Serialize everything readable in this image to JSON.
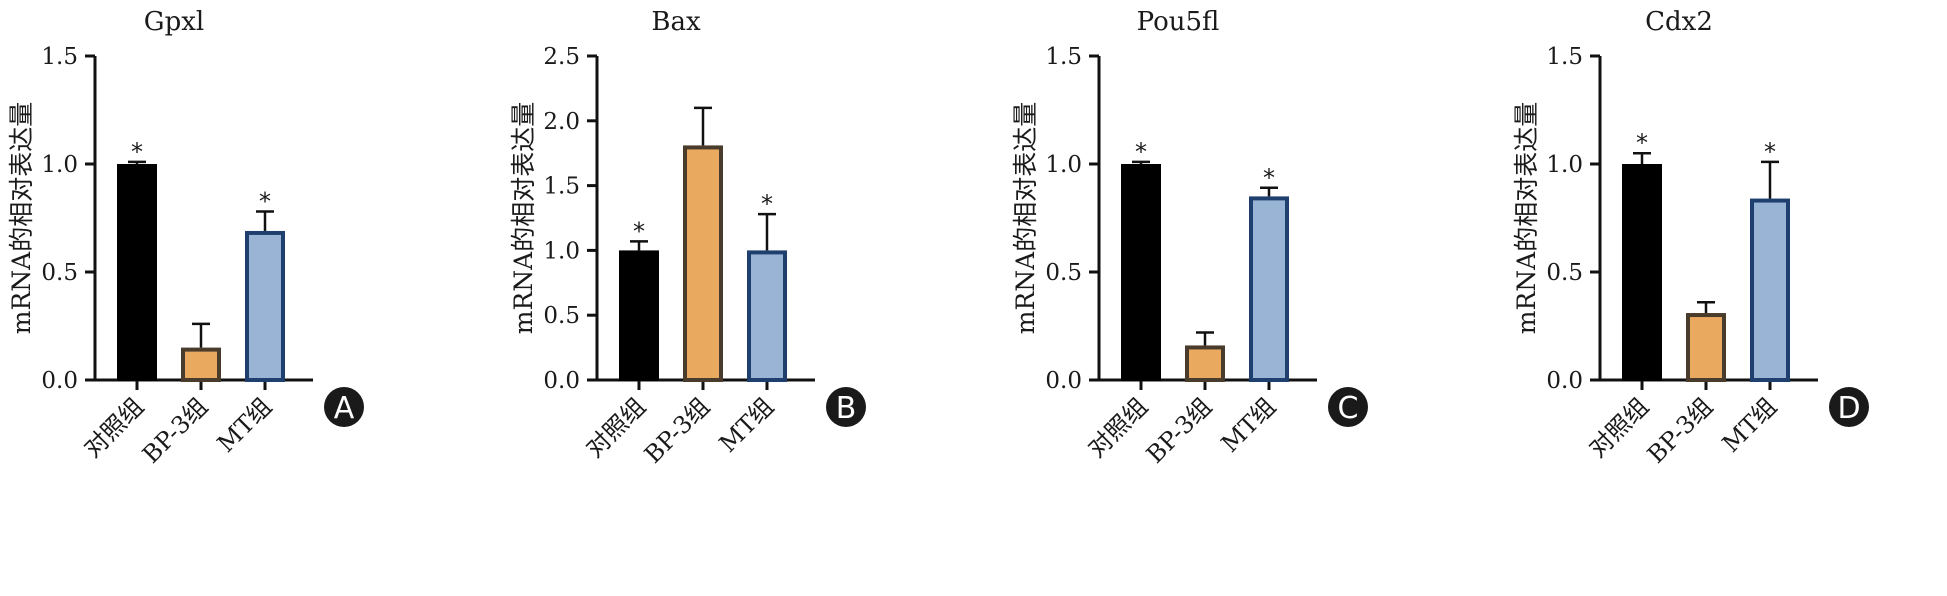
{
  "chart_data": [
    {
      "type": "bar",
      "panel": "A",
      "title": "Gpxl",
      "ylabel": "mRNA的相对表达量",
      "ylim": [
        0,
        1.5
      ],
      "yticks": [
        "0.0",
        "0.5",
        "1.0",
        "1.5"
      ],
      "categories": [
        "对照组",
        "BP-3组",
        "MT组"
      ],
      "values": [
        1.0,
        0.15,
        0.69
      ],
      "errors": [
        0.01,
        0.11,
        0.09
      ],
      "significance": [
        "*",
        "",
        "*"
      ]
    },
    {
      "type": "bar",
      "panel": "B",
      "title": "Bax",
      "ylabel": "mRNA的相对表达量",
      "ylim": [
        0,
        2.5
      ],
      "yticks": [
        "0.0",
        "0.5",
        "1.0",
        "1.5",
        "2.0",
        "2.5"
      ],
      "categories": [
        "对照组",
        "BP-3组",
        "MT组"
      ],
      "values": [
        1.0,
        1.81,
        1.0
      ],
      "errors": [
        0.07,
        0.29,
        0.28
      ],
      "significance": [
        "*",
        "",
        "*"
      ]
    },
    {
      "type": "bar",
      "panel": "C",
      "title": "Pou5fl",
      "ylabel": "mRNA的相对表达量",
      "ylim": [
        0,
        1.5
      ],
      "yticks": [
        "0.0",
        "0.5",
        "1.0",
        "1.5"
      ],
      "categories": [
        "对照组",
        "BP-3组",
        "MT组"
      ],
      "values": [
        1.0,
        0.16,
        0.85
      ],
      "errors": [
        0.01,
        0.06,
        0.04
      ],
      "significance": [
        "*",
        "",
        "*"
      ]
    },
    {
      "type": "bar",
      "panel": "D",
      "title": "Cdx2",
      "ylabel": "mRNA的相对表达量",
      "ylim": [
        0,
        1.5
      ],
      "yticks": [
        "0.0",
        "0.5",
        "1.0",
        "1.5"
      ],
      "categories": [
        "对照组",
        "BP-3组",
        "MT组"
      ],
      "values": [
        1.0,
        0.31,
        0.84
      ],
      "errors": [
        0.05,
        0.05,
        0.17
      ],
      "significance": [
        "*",
        "",
        "*"
      ]
    }
  ],
  "colors": {
    "bar_fills": [
      "#000000",
      "#e9a95e",
      "#9ab4d6"
    ],
    "bar_strokes": [
      "#000000",
      "#4a3c2c",
      "#1f3f6e"
    ],
    "axis": "#111111",
    "badge": "#1a1a1a"
  }
}
